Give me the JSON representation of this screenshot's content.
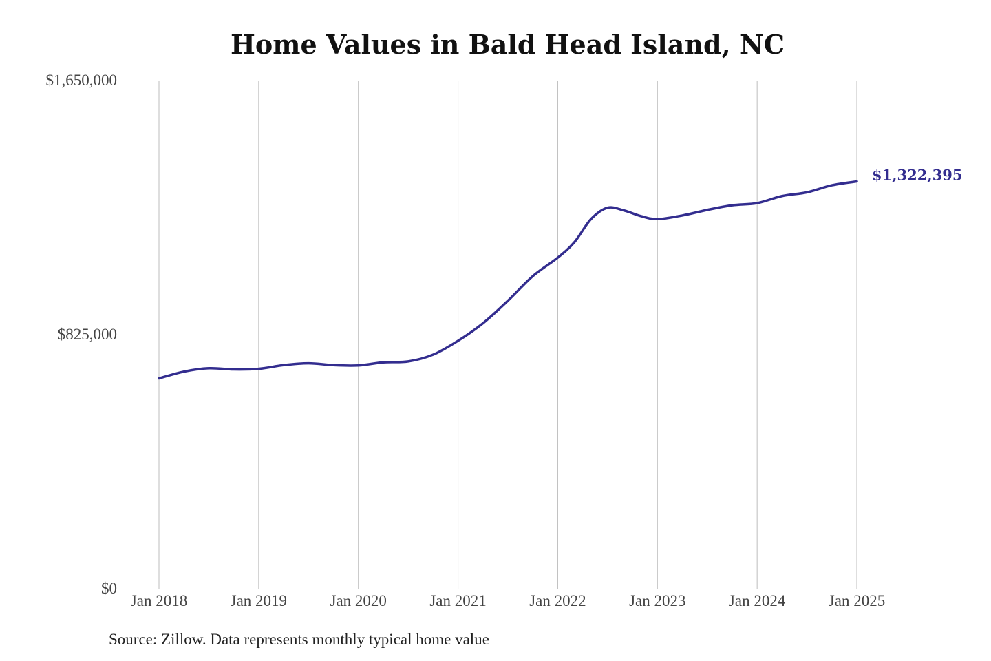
{
  "title": "Home Values in Bald Head Island, NC",
  "source": "Source: Zillow. Data represents monthly typical home value",
  "colors": {
    "line": "#332d8f",
    "grid": "#bdbdbd",
    "tick_text": "#444444"
  },
  "chart_data": {
    "type": "line",
    "title": "Home Values in Bald Head Island, NC",
    "xlabel": "",
    "ylabel": "",
    "ylim": [
      0,
      1650000
    ],
    "xlim": [
      "2018-01",
      "2025-01"
    ],
    "grid": "vertical",
    "legend": "none",
    "y_ticks": [
      {
        "value": 0,
        "label": "$0"
      },
      {
        "value": 825000,
        "label": "$825,000"
      },
      {
        "value": 1650000,
        "label": "$1,650,000"
      }
    ],
    "x_ticks": [
      {
        "date": "2018-01",
        "label": "Jan 2018"
      },
      {
        "date": "2019-01",
        "label": "Jan 2019"
      },
      {
        "date": "2020-01",
        "label": "Jan 2020"
      },
      {
        "date": "2021-01",
        "label": "Jan 2021"
      },
      {
        "date": "2022-01",
        "label": "Jan 2022"
      },
      {
        "date": "2023-01",
        "label": "Jan 2023"
      },
      {
        "date": "2024-01",
        "label": "Jan 2024"
      },
      {
        "date": "2025-01",
        "label": "Jan 2025"
      }
    ],
    "end_label": "$1,322,395",
    "series": [
      {
        "points": [
          [
            "2018-01",
            683000
          ],
          [
            "2018-04",
            705000
          ],
          [
            "2018-07",
            716000
          ],
          [
            "2018-10",
            712000
          ],
          [
            "2019-01",
            714000
          ],
          [
            "2019-04",
            726000
          ],
          [
            "2019-07",
            732000
          ],
          [
            "2019-10",
            726000
          ],
          [
            "2020-01",
            725000
          ],
          [
            "2020-04",
            735000
          ],
          [
            "2020-07",
            738000
          ],
          [
            "2020-10",
            760000
          ],
          [
            "2021-01",
            805000
          ],
          [
            "2021-04",
            862000
          ],
          [
            "2021-07",
            935000
          ],
          [
            "2021-10",
            1015000
          ],
          [
            "2022-01",
            1075000
          ],
          [
            "2022-03",
            1125000
          ],
          [
            "2022-05",
            1200000
          ],
          [
            "2022-07",
            1237000
          ],
          [
            "2022-09",
            1228000
          ],
          [
            "2022-11",
            1210000
          ],
          [
            "2023-01",
            1200000
          ],
          [
            "2023-04",
            1212000
          ],
          [
            "2023-07",
            1230000
          ],
          [
            "2023-10",
            1245000
          ],
          [
            "2024-01",
            1252000
          ],
          [
            "2024-04",
            1275000
          ],
          [
            "2024-07",
            1287000
          ],
          [
            "2024-10",
            1310000
          ],
          [
            "2025-01",
            1322395
          ]
        ]
      }
    ]
  }
}
